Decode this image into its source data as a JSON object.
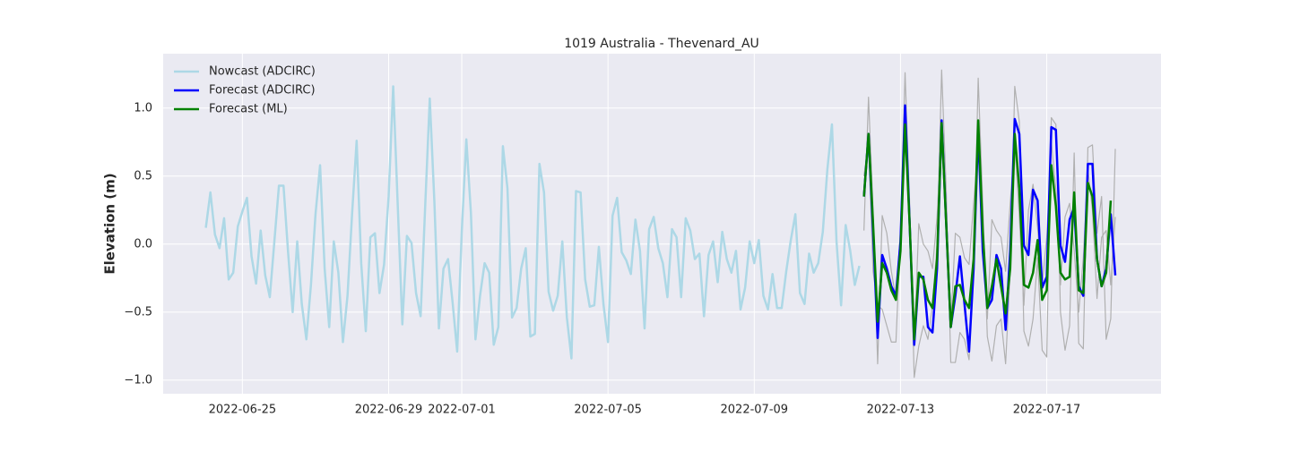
{
  "chart_data": {
    "type": "line",
    "title": "1019 Australia - Thevenard_AU",
    "y_label": "Elevation (m)",
    "xlim": [
      -52,
      603
    ],
    "xticks": [
      {
        "value": 0,
        "label": "2022-06-25"
      },
      {
        "value": 96,
        "label": "2022-06-29"
      },
      {
        "value": 144,
        "label": "2022-07-01"
      },
      {
        "value": 240,
        "label": "2022-07-05"
      },
      {
        "value": 336,
        "label": "2022-07-09"
      },
      {
        "value": 432,
        "label": "2022-07-13"
      },
      {
        "value": 528,
        "label": "2022-07-17"
      }
    ],
    "ylim": [
      -1.1,
      1.4
    ],
    "yticks": [
      {
        "value": -1,
        "label": "−1.0"
      },
      {
        "value": -0.5,
        "label": "−0.5"
      },
      {
        "value": 0,
        "label": "0.0"
      },
      {
        "value": 0.5,
        "label": "0.5"
      },
      {
        "value": 1,
        "label": "1.0"
      }
    ],
    "grid": true,
    "legend": "upper left",
    "series": [
      {
        "color": "#b0b0b0",
        "x": [
          408,
          411,
          414,
          417,
          420,
          423,
          426,
          429,
          432,
          435,
          438,
          441,
          444,
          447,
          450,
          453,
          456,
          459,
          462,
          465,
          468,
          471,
          474,
          477,
          480,
          483,
          486,
          489,
          492,
          495,
          498,
          501,
          504,
          507,
          510,
          513,
          516,
          519,
          522,
          525,
          528,
          531,
          534,
          537,
          540,
          543,
          546,
          549,
          552,
          555,
          558,
          561,
          564,
          567,
          570,
          573
        ],
        "values": [
          0.1,
          1.08,
          0.25,
          -0.88,
          0.21,
          0.08,
          -0.2,
          -0.4,
          0.1,
          1.26,
          0.3,
          -0.98,
          -0.75,
          -0.6,
          -0.7,
          -0.45,
          0.0,
          1.28,
          0.4,
          -0.87,
          -0.87,
          -0.65,
          -0.7,
          -0.85,
          -0.2,
          1.22,
          0.3,
          -0.68,
          -0.86,
          -0.6,
          -0.55,
          -0.88,
          -0.2,
          1.16,
          0.9,
          -0.64,
          -0.75,
          -0.55,
          -0.1,
          -0.78,
          -0.83,
          0.93,
          0.88,
          -0.5,
          -0.78,
          -0.6,
          0.67,
          -0.73,
          -0.77,
          0.71,
          0.73,
          0.08,
          0.35,
          -0.7,
          -0.55,
          0.7
        ]
      },
      {
        "color": "#b0b0b0",
        "x": [
          408,
          411,
          414,
          417,
          420,
          423,
          426,
          429,
          432,
          435,
          438,
          441,
          444,
          447,
          450,
          453,
          456,
          459,
          462,
          465,
          468,
          471,
          474,
          477,
          480,
          483,
          486,
          489,
          492,
          495,
          498,
          501,
          504,
          507,
          510,
          513,
          516,
          519,
          522,
          525,
          528,
          531,
          534,
          537,
          540,
          543,
          546,
          549,
          552,
          555,
          558,
          561,
          564,
          567,
          570,
          573
        ],
        "values": [
          0.5,
          0.75,
          -0.2,
          -0.45,
          -0.48,
          -0.6,
          -0.72,
          -0.72,
          0.05,
          0.85,
          0.25,
          -0.75,
          0.15,
          0.0,
          -0.05,
          -0.18,
          0.2,
          0.85,
          0.1,
          -0.6,
          0.08,
          0.05,
          -0.1,
          -0.15,
          0.3,
          0.7,
          0.1,
          -0.55,
          0.18,
          0.1,
          0.05,
          -0.2,
          0.3,
          0.75,
          0.2,
          -0.45,
          0.25,
          0.44,
          0.12,
          -0.3,
          0.05,
          0.75,
          0.4,
          -0.3,
          0.2,
          0.3,
          -0.05,
          -0.5,
          -0.1,
          0.55,
          0.25,
          -0.4,
          0.05,
          0.1,
          -0.3,
          0.2
        ]
      },
      {
        "name": "Nowcast (ADCIRC)",
        "color": "#add8e6",
        "width": 2.5,
        "x": [
          -24,
          -21,
          -18,
          -15,
          -12,
          -9,
          -6,
          -3,
          0,
          3,
          6,
          9,
          12,
          15,
          18,
          21,
          24,
          27,
          30,
          33,
          36,
          39,
          42,
          45,
          48,
          51,
          54,
          57,
          60,
          63,
          66,
          69,
          72,
          75,
          78,
          81,
          84,
          87,
          90,
          93,
          96,
          99,
          102,
          105,
          108,
          111,
          114,
          117,
          120,
          123,
          126,
          129,
          132,
          135,
          138,
          141,
          144,
          147,
          150,
          153,
          156,
          159,
          162,
          165,
          168,
          171,
          174,
          177,
          180,
          183,
          186,
          189,
          192,
          195,
          198,
          201,
          204,
          207,
          210,
          213,
          216,
          219,
          222,
          225,
          228,
          231,
          234,
          237,
          240,
          243,
          246,
          249,
          252,
          255,
          258,
          261,
          264,
          267,
          270,
          273,
          276,
          279,
          282,
          285,
          288,
          291,
          294,
          297,
          300,
          303,
          306,
          309,
          312,
          315,
          318,
          321,
          324,
          327,
          330,
          333,
          336,
          339,
          342,
          345,
          348,
          351,
          354,
          357,
          360,
          363,
          366,
          369,
          372,
          375,
          378,
          381,
          384,
          387,
          390,
          393,
          396,
          399,
          402,
          405
        ],
        "values": [
          0.12,
          0.38,
          0.07,
          -0.03,
          0.19,
          -0.26,
          -0.21,
          0.13,
          0.24,
          0.34,
          -0.09,
          -0.29,
          0.1,
          -0.23,
          -0.39,
          0.02,
          0.43,
          0.43,
          -0.06,
          -0.5,
          0.02,
          -0.44,
          -0.7,
          -0.3,
          0.22,
          0.58,
          -0.18,
          -0.61,
          0.02,
          -0.21,
          -0.72,
          -0.38,
          0.22,
          0.76,
          -0.14,
          -0.64,
          0.05,
          0.08,
          -0.36,
          -0.15,
          0.35,
          1.16,
          0.28,
          -0.59,
          0.06,
          0.01,
          -0.36,
          -0.53,
          0.28,
          1.07,
          0.32,
          -0.62,
          -0.18,
          -0.11,
          -0.43,
          -0.79,
          0.09,
          0.77,
          0.23,
          -0.7,
          -0.38,
          -0.14,
          -0.21,
          -0.74,
          -0.61,
          0.72,
          0.41,
          -0.54,
          -0.47,
          -0.18,
          -0.03,
          -0.68,
          -0.66,
          0.59,
          0.38,
          -0.35,
          -0.49,
          -0.38,
          0.02,
          -0.54,
          -0.84,
          0.39,
          0.38,
          -0.26,
          -0.46,
          -0.45,
          -0.02,
          -0.44,
          -0.72,
          0.21,
          0.34,
          -0.06,
          -0.12,
          -0.22,
          0.18,
          -0.05,
          -0.62,
          0.11,
          0.2,
          -0.03,
          -0.14,
          -0.39,
          0.11,
          0.05,
          -0.39,
          0.19,
          0.1,
          -0.11,
          -0.07,
          -0.53,
          -0.08,
          0.02,
          -0.28,
          0.09,
          -0.11,
          -0.21,
          -0.05,
          -0.48,
          -0.32,
          0.02,
          -0.14,
          0.03,
          -0.38,
          -0.48,
          -0.22,
          -0.47,
          -0.47,
          -0.2,
          0.03,
          0.22,
          -0.36,
          -0.44,
          -0.07,
          -0.21,
          -0.14,
          0.09,
          0.55,
          0.88,
          0.02,
          -0.45,
          0.14,
          -0.05,
          -0.3,
          -0.16
        ]
      },
      {
        "name": "Forecast (ADCIRC)",
        "color": "#0000ff",
        "width": 2.5,
        "x": [
          408,
          411,
          414,
          417,
          420,
          423,
          426,
          429,
          432,
          435,
          438,
          441,
          444,
          447,
          450,
          453,
          456,
          459,
          462,
          465,
          468,
          471,
          474,
          477,
          480,
          483,
          486,
          489,
          492,
          495,
          498,
          501,
          504,
          507,
          510,
          513,
          516,
          519,
          522,
          525,
          528,
          531,
          534,
          537,
          540,
          543,
          546,
          549,
          552,
          555,
          558,
          561,
          564,
          567,
          570,
          573
        ],
        "values": [
          0.35,
          0.81,
          0.09,
          -0.69,
          -0.08,
          -0.18,
          -0.31,
          -0.38,
          0.02,
          1.02,
          0.15,
          -0.74,
          -0.24,
          -0.24,
          -0.61,
          -0.65,
          -0.18,
          0.91,
          0.15,
          -0.61,
          -0.38,
          -0.09,
          -0.44,
          -0.79,
          -0.18,
          0.84,
          -0.05,
          -0.47,
          -0.41,
          -0.08,
          -0.18,
          -0.63,
          -0.05,
          0.92,
          0.81,
          -0.01,
          -0.08,
          0.4,
          0.32,
          -0.32,
          -0.24,
          0.86,
          0.84,
          -0.01,
          -0.13,
          0.18,
          0.27,
          -0.31,
          -0.38,
          0.59,
          0.59,
          -0.11,
          -0.31,
          -0.18,
          0.22,
          -0.23
        ]
      },
      {
        "name": "Forecast (ML)",
        "color": "#008000",
        "width": 2.5,
        "x": [
          408,
          411,
          414,
          417,
          420,
          423,
          426,
          429,
          432,
          435,
          438,
          441,
          444,
          447,
          450,
          453,
          456,
          459,
          462,
          465,
          468,
          471,
          474,
          477,
          480,
          483,
          486,
          489,
          492,
          495,
          498,
          501,
          504,
          507,
          510,
          513,
          516,
          519,
          522,
          525,
          528,
          531,
          534,
          537,
          540,
          543,
          546,
          549,
          552,
          555,
          558,
          561,
          564,
          567,
          570,
          573
        ],
        "values": [
          0.35,
          0.81,
          0.15,
          -0.57,
          -0.14,
          -0.21,
          -0.34,
          -0.41,
          -0.05,
          0.88,
          0.15,
          -0.7,
          -0.21,
          -0.26,
          -0.41,
          -0.47,
          -0.11,
          0.89,
          0.15,
          -0.61,
          -0.31,
          -0.3,
          -0.41,
          -0.47,
          -0.11,
          0.91,
          0.09,
          -0.47,
          -0.31,
          -0.11,
          -0.31,
          -0.51,
          -0.18,
          0.81,
          0.41,
          -0.3,
          -0.32,
          -0.21,
          0.03,
          -0.41,
          -0.34,
          0.58,
          0.28,
          -0.21,
          -0.26,
          -0.24,
          0.38,
          -0.34,
          -0.36,
          0.45,
          0.35,
          -0.11,
          -0.31,
          -0.21,
          0.32,
          null
        ]
      }
    ]
  }
}
